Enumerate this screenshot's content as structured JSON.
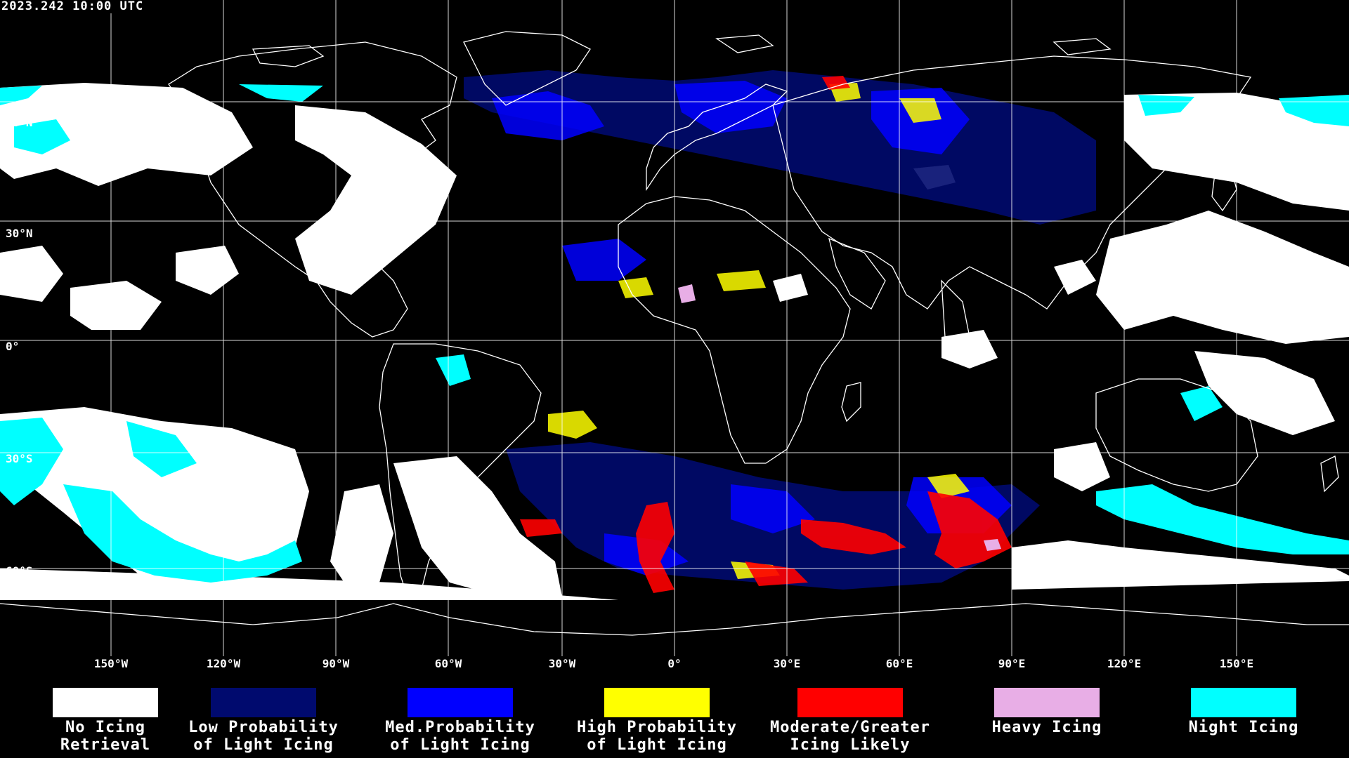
{
  "timestamp": "2023.242 10:00 UTC",
  "latitude_labels": [
    "60°N",
    "30°N",
    "0°",
    "30°S",
    "60°S"
  ],
  "longitude_labels": [
    "150°W",
    "120°W",
    "90°W",
    "60°W",
    "30°W",
    "0°",
    "30°E",
    "60°E",
    "90°E",
    "120°E",
    "150°E"
  ],
  "legend": [
    {
      "label": "No Icing\nRetrieval",
      "color": "#ffffff"
    },
    {
      "label": "Low Probability\nof Light Icing",
      "color": "#000a6e"
    },
    {
      "label": "Med.Probability\nof Light Icing",
      "color": "#0000ff"
    },
    {
      "label": "High Probability\nof Light Icing",
      "color": "#ffff00"
    },
    {
      "label": "Moderate/Greater\nIcing Likely",
      "color": "#ff0000"
    },
    {
      "label": "Heavy Icing",
      "color": "#e8aee6"
    },
    {
      "label": "Night Icing",
      "color": "#00ffff"
    }
  ],
  "colors": {
    "background": "#000000",
    "gridlines": "#ffffff",
    "coastlines": "#ffffff"
  }
}
